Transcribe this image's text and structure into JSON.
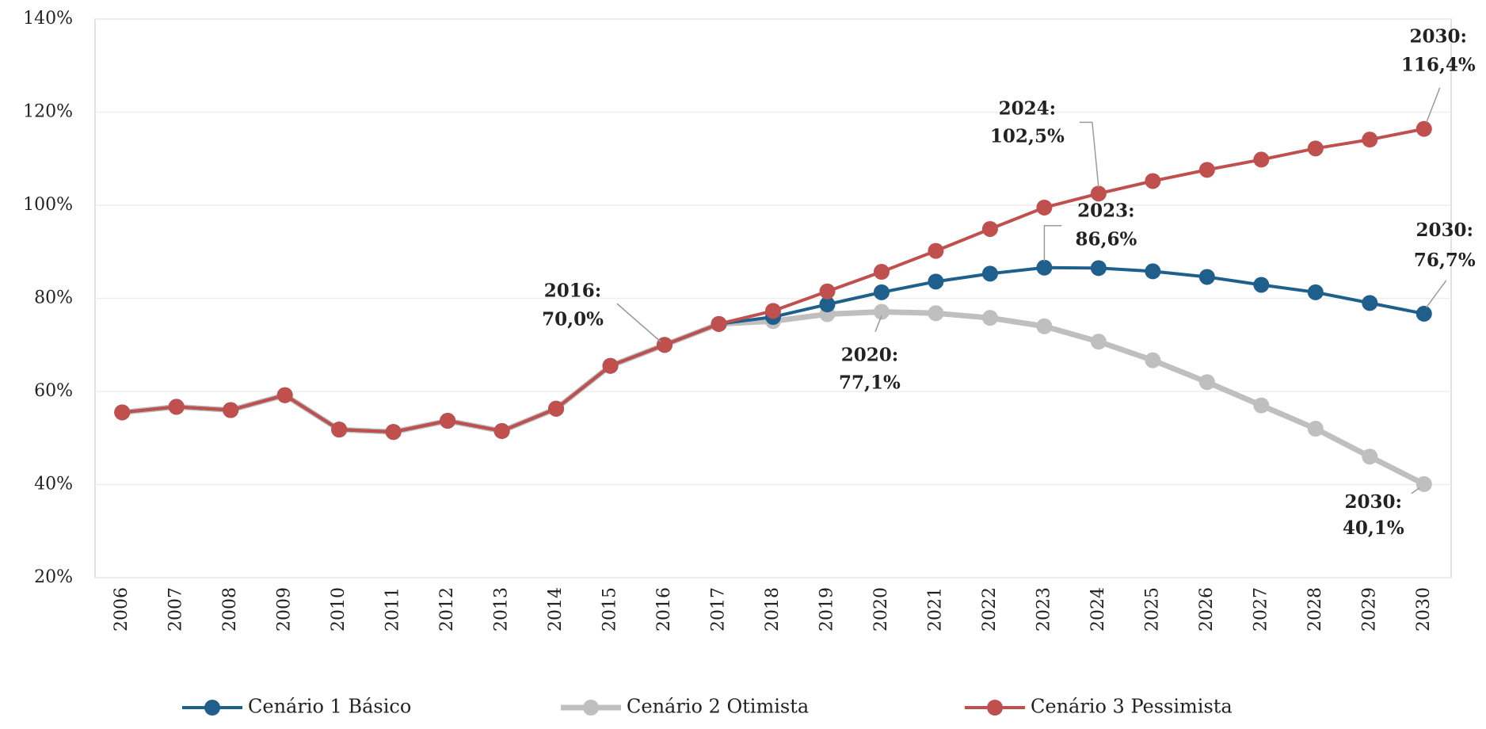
{
  "chart_data": {
    "type": "line",
    "categories": [
      "2006",
      "2007",
      "2008",
      "2009",
      "2010",
      "2011",
      "2012",
      "2013",
      "2014",
      "2015",
      "2016",
      "2017",
      "2018",
      "2019",
      "2020",
      "2021",
      "2022",
      "2023",
      "2024",
      "2025",
      "2026",
      "2027",
      "2028",
      "2029",
      "2030"
    ],
    "ylim": [
      20,
      140
    ],
    "yticks": [
      {
        "value": 20,
        "label": "20%"
      },
      {
        "value": 40,
        "label": "40%"
      },
      {
        "value": 60,
        "label": "60%"
      },
      {
        "value": 80,
        "label": "80%"
      },
      {
        "value": 100,
        "label": "100%"
      },
      {
        "value": 120,
        "label": "120%"
      },
      {
        "value": 140,
        "label": "140%"
      }
    ],
    "grid": true,
    "legend": "bottom",
    "series": [
      {
        "name": "Cenário 1 Básico",
        "color": "#1f5f8b",
        "values": [
          55.5,
          56.7,
          56.0,
          59.2,
          51.8,
          51.3,
          53.7,
          51.5,
          56.3,
          65.5,
          70.0,
          74.5,
          76.0,
          78.7,
          81.3,
          83.6,
          85.3,
          86.6,
          86.5,
          85.8,
          84.6,
          82.9,
          81.3,
          79.0,
          76.7
        ],
        "value_labels": [
          null,
          null,
          null,
          null,
          null,
          null,
          null,
          null,
          null,
          null,
          null,
          null,
          null,
          null,
          null,
          null,
          null,
          [
            "2023:",
            "86,6%"
          ],
          null,
          null,
          null,
          null,
          null,
          null,
          [
            "2030:",
            "76,7%"
          ]
        ]
      },
      {
        "name": "Cenário 2 Otimista",
        "color": "#bfbfbf",
        "values": [
          55.5,
          56.7,
          56.0,
          59.2,
          51.8,
          51.3,
          53.7,
          51.5,
          56.3,
          65.5,
          70.0,
          74.5,
          75.1,
          76.6,
          77.1,
          76.8,
          75.8,
          74.0,
          70.7,
          66.7,
          62.0,
          57.0,
          52.0,
          46.0,
          40.1
        ],
        "value_labels": [
          null,
          null,
          null,
          null,
          null,
          null,
          null,
          null,
          null,
          null,
          null,
          null,
          null,
          null,
          [
            "2020:",
            "77,1%"
          ],
          null,
          null,
          null,
          null,
          null,
          null,
          null,
          null,
          null,
          [
            "2030:",
            "40,1%"
          ]
        ]
      },
      {
        "name": "Cenário 3 Pessimista",
        "color": "#c0504d",
        "values": [
          55.5,
          56.7,
          56.0,
          59.2,
          51.8,
          51.3,
          53.7,
          51.5,
          56.3,
          65.5,
          70.0,
          74.5,
          77.3,
          81.5,
          85.7,
          90.2,
          94.9,
          99.5,
          102.5,
          105.2,
          107.6,
          109.8,
          112.2,
          114.1,
          116.4
        ],
        "value_labels": [
          null,
          null,
          null,
          null,
          null,
          null,
          null,
          null,
          null,
          null,
          [
            "2016:",
            "70,0%"
          ],
          null,
          null,
          null,
          null,
          null,
          null,
          null,
          [
            "2024:",
            "102,5%"
          ],
          null,
          null,
          null,
          null,
          null,
          [
            "2030:",
            "116,4%"
          ]
        ]
      }
    ]
  }
}
